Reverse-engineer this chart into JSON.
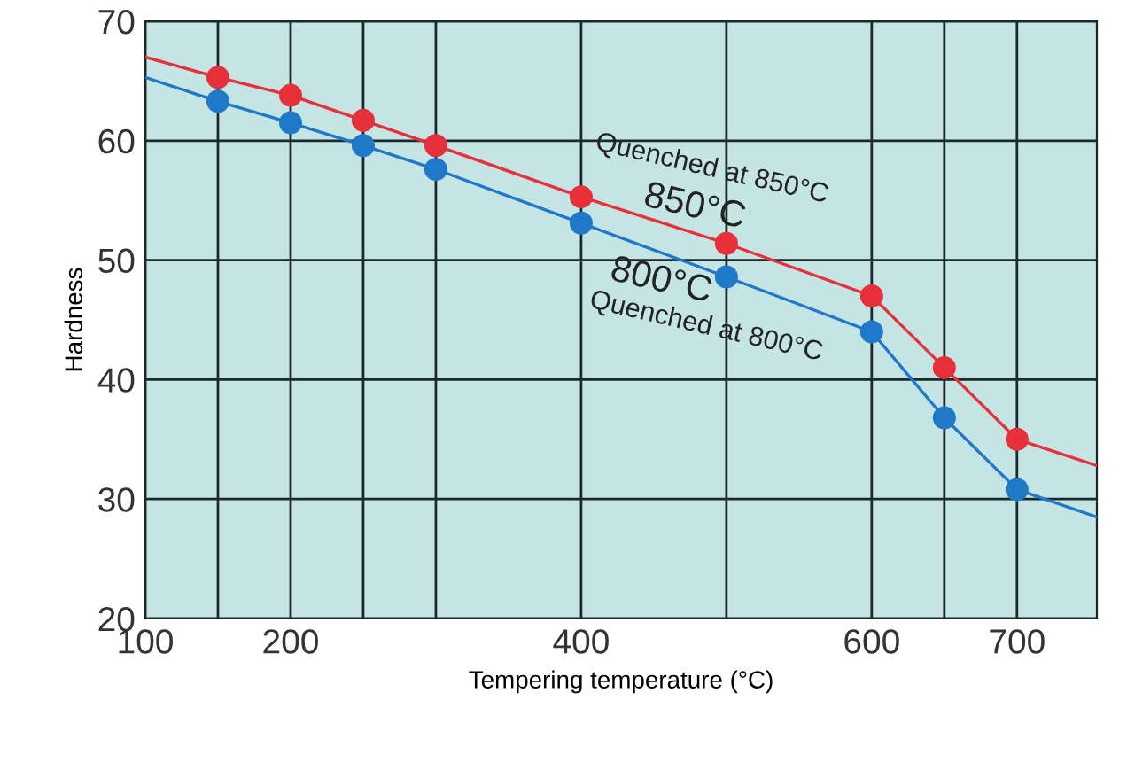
{
  "chart_data": {
    "type": "line",
    "xlabel": "Tempering temperature (°C)",
    "ylabel": "Hardness",
    "xlim": [
      100,
      755
    ],
    "ylim": [
      20,
      70
    ],
    "xticks": [
      100,
      {
        "value": 150,
        "label": null
      },
      200,
      {
        "value": 250,
        "label": null
      },
      {
        "value": 300,
        "label": null
      },
      400,
      {
        "value": 500,
        "label": null
      },
      600,
      {
        "value": 650,
        "label": null
      },
      700
    ],
    "yticks": [
      20,
      30,
      40,
      50,
      60,
      70
    ],
    "grid": true,
    "series": [
      {
        "marker": "none",
        "color": "#e8303a",
        "x": [
          100,
          150,
          200,
          250,
          300,
          400,
          500,
          600,
          650,
          700,
          755
        ],
        "values": [
          67.0,
          65.3,
          63.8,
          61.7,
          59.6,
          55.3,
          51.4,
          47.0,
          41.0,
          35.0,
          32.8
        ]
      },
      {
        "marker": "none",
        "color": "#1f78c8",
        "x": [
          100,
          150,
          200,
          250,
          300,
          400,
          500,
          600,
          650,
          700,
          755
        ],
        "values": [
          65.3,
          63.3,
          61.5,
          59.6,
          57.6,
          53.1,
          48.6,
          44.0,
          36.8,
          30.8,
          28.5
        ]
      },
      {
        "type": "scatter",
        "marker": "circle",
        "color": "#e8303a",
        "x": [
          150,
          200,
          250,
          300,
          400,
          500,
          600,
          650,
          700
        ],
        "values": [
          65.3,
          63.8,
          61.7,
          59.6,
          55.3,
          51.4,
          47.0,
          41.0,
          35.0
        ]
      },
      {
        "type": "scatter",
        "marker": "circle",
        "color": "#1f78c8",
        "x": [
          150,
          200,
          250,
          300,
          400,
          500,
          600,
          650,
          700
        ],
        "values": [
          63.3,
          61.5,
          59.6,
          57.6,
          53.1,
          48.6,
          44.0,
          36.8,
          30.8
        ]
      }
    ],
    "annotations": [
      "Quenched at 850°C",
      "850°C",
      "800°C",
      "Quenched at 800°C"
    ]
  }
}
